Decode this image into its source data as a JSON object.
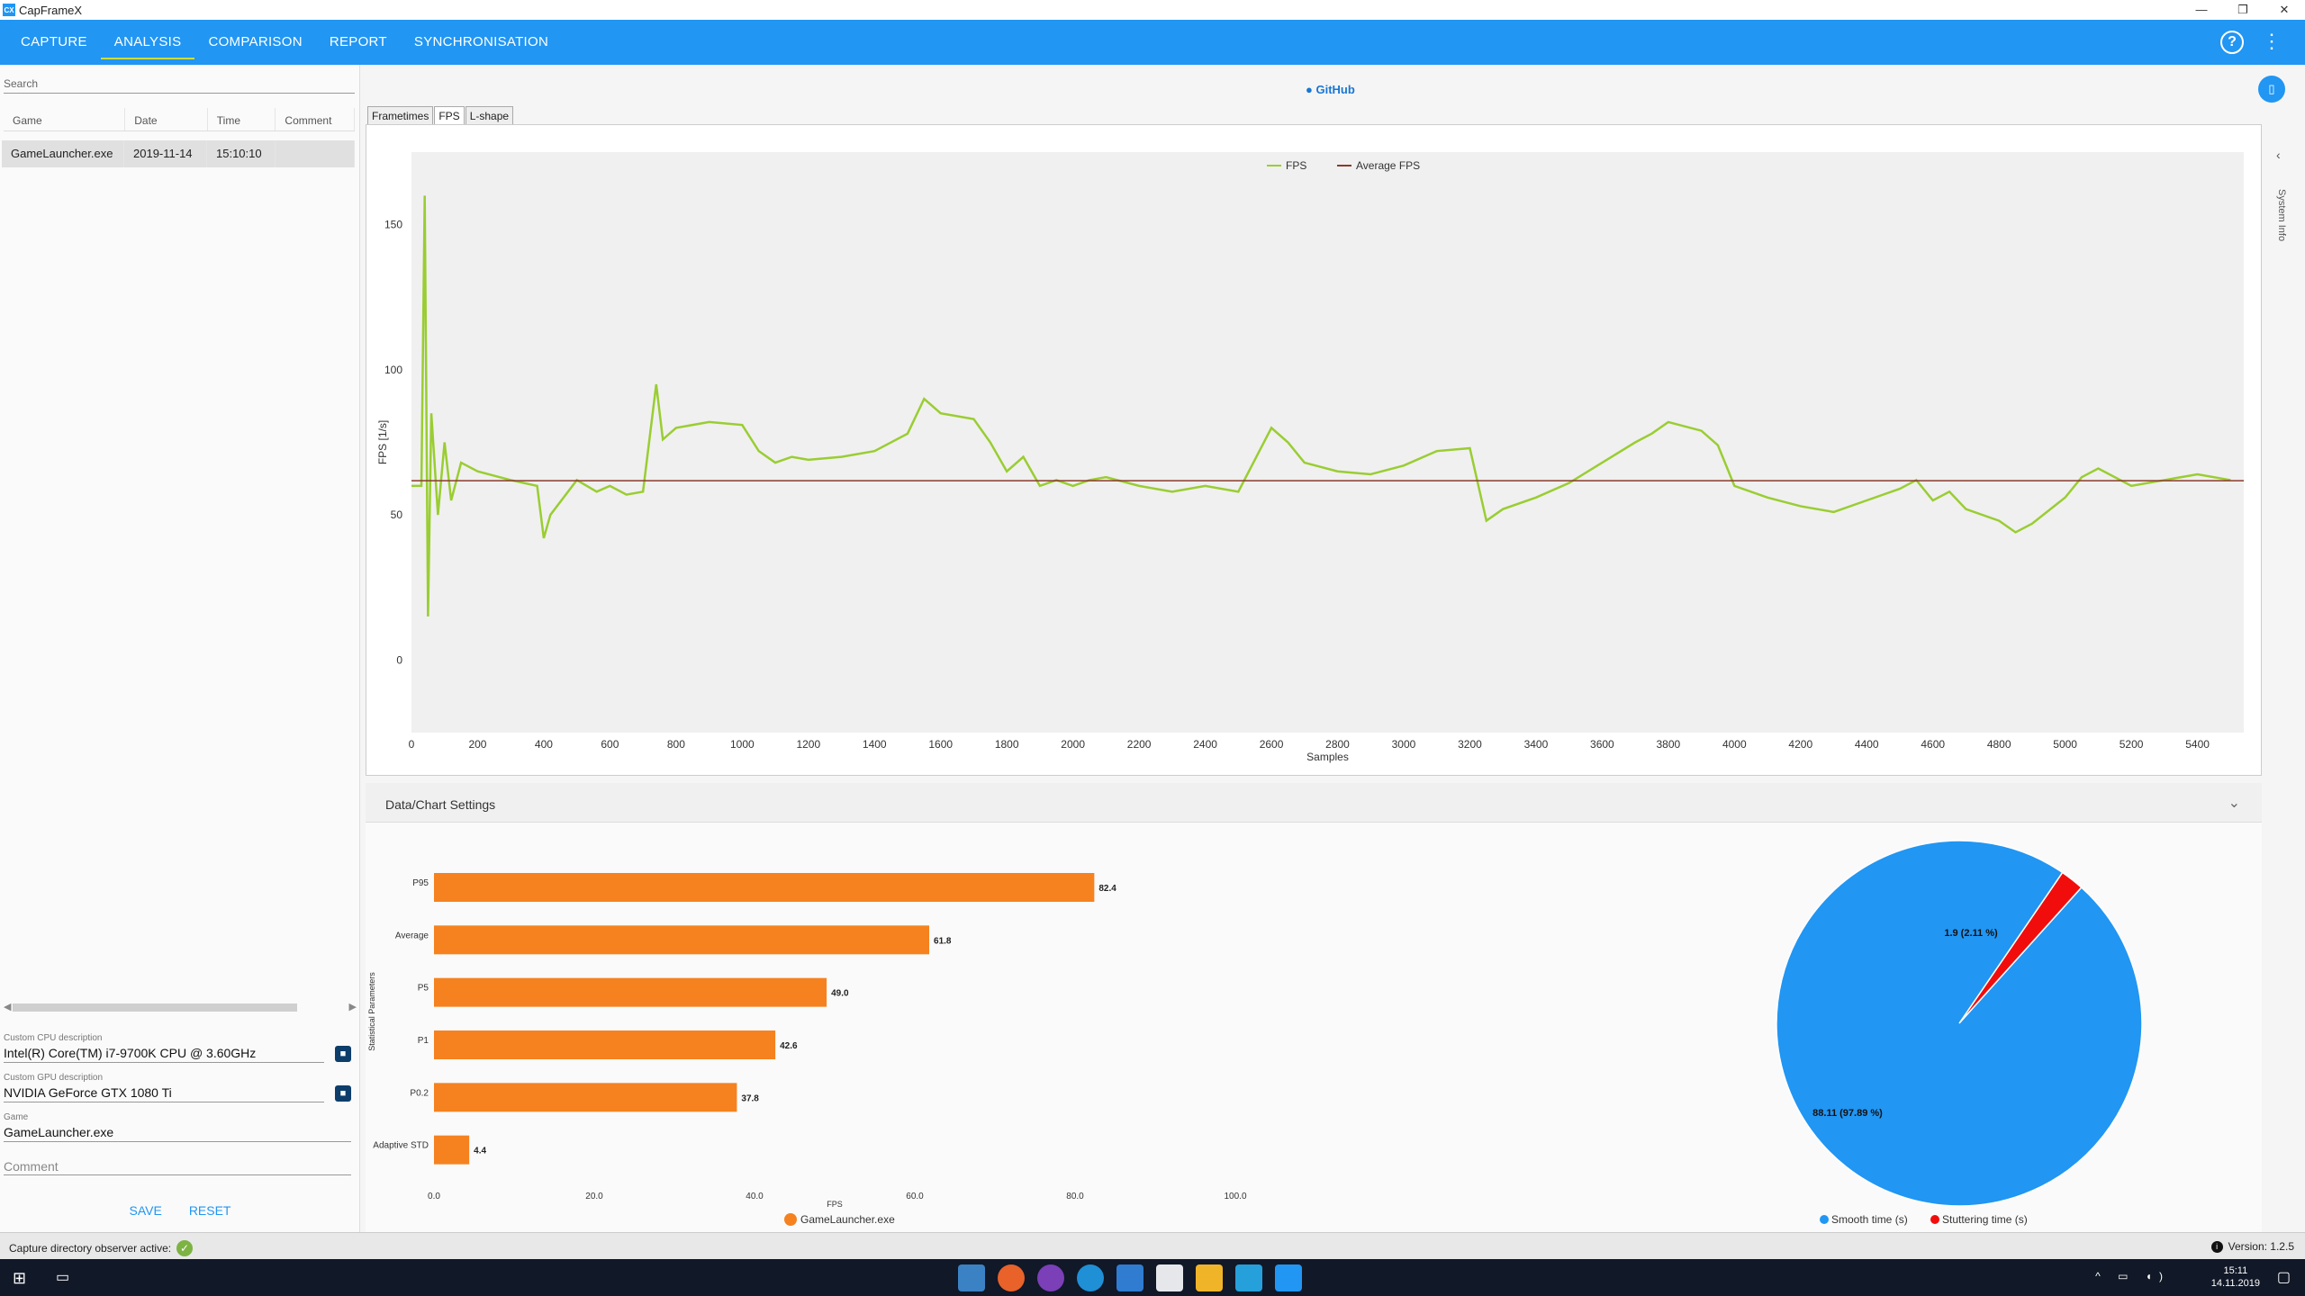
{
  "window": {
    "title": "CapFrameX",
    "app_icon_text": "CX",
    "min": "—",
    "restore": "❐",
    "close": "✕"
  },
  "nav": {
    "tabs": [
      "CAPTURE",
      "ANALYSIS",
      "COMPARISON",
      "REPORT",
      "SYNCHRONISATION"
    ],
    "active_tab": "ANALYSIS",
    "help_label": "?",
    "more_label": "⋮"
  },
  "left_panel": {
    "search_placeholder": "Search",
    "table": {
      "headers": [
        "Game",
        "Date",
        "Time",
        "Comment"
      ],
      "rows": [
        {
          "game": "GameLauncher.exe",
          "date": "2019-11-14",
          "time": "15:10:10",
          "comment": ""
        }
      ]
    },
    "fields": {
      "cpu_label": "Custom CPU description",
      "cpu_value": "Intel(R) Core(TM) i7-9700K CPU @ 3.60GHz",
      "gpu_label": "Custom GPU description",
      "gpu_value": "NVIDIA GeForce GTX 1080 Ti",
      "game_label": "Game",
      "game_value": "GameLauncher.exe",
      "comment_placeholder": "Comment"
    },
    "save_label": "SAVE",
    "reset_label": "RESET"
  },
  "content": {
    "github_label": "GitHub",
    "chart_tabs": [
      "Frametimes",
      "FPS",
      "L-shape"
    ],
    "active_chart_tab": "FPS",
    "sysinfo_label": "System Info",
    "settings_label": "Data/Chart Settings"
  },
  "chart_data": [
    {
      "type": "line",
      "xlabel": "Samples",
      "ylabel": "FPS [1/s]",
      "xlim": [
        0,
        5540
      ],
      "ylim": [
        -25,
        175
      ],
      "xticks": [
        0,
        200,
        400,
        600,
        800,
        1000,
        1200,
        1400,
        1600,
        1800,
        2000,
        2200,
        2400,
        2600,
        2800,
        3000,
        3200,
        3400,
        3600,
        3800,
        4000,
        4200,
        4400,
        4600,
        4800,
        5000,
        5200,
        5400
      ],
      "yticks": [
        0,
        50,
        100,
        150
      ],
      "legend": "top-center",
      "series": [
        {
          "name": "FPS",
          "color": "#9acd32",
          "x": [
            0,
            30,
            40,
            50,
            60,
            80,
            100,
            120,
            150,
            200,
            300,
            380,
            400,
            420,
            500,
            560,
            600,
            650,
            700,
            740,
            760,
            800,
            900,
            1000,
            1050,
            1100,
            1150,
            1200,
            1300,
            1400,
            1500,
            1550,
            1600,
            1700,
            1750,
            1800,
            1850,
            1900,
            1950,
            2000,
            2050,
            2100,
            2200,
            2300,
            2400,
            2500,
            2600,
            2650,
            2700,
            2800,
            2900,
            3000,
            3100,
            3200,
            3250,
            3300,
            3400,
            3500,
            3600,
            3700,
            3750,
            3800,
            3900,
            3950,
            4000,
            4100,
            4200,
            4300,
            4400,
            4500,
            4550,
            4600,
            4650,
            4700,
            4800,
            4850,
            4900,
            5000,
            5050,
            5100,
            5200,
            5300,
            5400,
            5500
          ],
          "y": [
            60,
            60,
            160,
            15,
            85,
            50,
            75,
            55,
            68,
            65,
            62,
            60,
            42,
            50,
            62,
            58,
            60,
            57,
            58,
            95,
            76,
            80,
            82,
            81,
            72,
            68,
            70,
            69,
            70,
            72,
            78,
            90,
            85,
            83,
            75,
            65,
            70,
            60,
            62,
            60,
            62,
            63,
            60,
            58,
            60,
            58,
            80,
            75,
            68,
            65,
            64,
            67,
            72,
            73,
            48,
            52,
            56,
            61,
            68,
            75,
            78,
            82,
            79,
            74,
            60,
            56,
            53,
            51,
            55,
            59,
            62,
            55,
            58,
            52,
            48,
            44,
            47,
            56,
            63,
            66,
            60,
            62,
            64,
            62
          ]
        },
        {
          "name": "Average FPS",
          "color": "#8b3a2b",
          "x": [
            0,
            5540
          ],
          "y": [
            61.8,
            61.8
          ]
        }
      ]
    },
    {
      "type": "bar",
      "orientation": "horizontal",
      "categories": [
        "P95",
        "Average",
        "P5",
        "P1",
        "P0.2",
        "Adaptive STD"
      ],
      "values": [
        82.4,
        61.8,
        49.0,
        42.6,
        37.8,
        4.4
      ],
      "value_labels": [
        "82.4",
        "61.8",
        "49.0",
        "42.6",
        "37.8",
        "4.4"
      ],
      "xlabel": "FPS",
      "ylabel": "Statistical Parameters",
      "xlim": [
        0,
        100
      ],
      "xticks": [
        "0.0",
        "20.0",
        "40.0",
        "60.0",
        "80.0",
        "100.0"
      ],
      "series_name": "GameLauncher.exe",
      "color": "#f5821f",
      "legend": "bottom-center"
    },
    {
      "type": "pie",
      "slices": [
        {
          "name": "Smooth time (s)",
          "value": 88.11,
          "label": "88.11 (97.89 %)",
          "color": "#2196f3"
        },
        {
          "name": "Stuttering time (s)",
          "value": 1.9,
          "label": "1.9 (2.11 %)",
          "color": "#f20d0d"
        }
      ],
      "legend": "bottom-center"
    }
  ],
  "statusbar": {
    "left_text": "Capture directory observer active:",
    "ok_icon": "✓",
    "version_text": "Version: 1.2.5",
    "info_icon": "i"
  },
  "taskbar": {
    "time": "15:11",
    "date": "14.11.2019",
    "start_icon": "⊞",
    "taskview_icon": "▭",
    "tray_icons": "^ ▭ ◖)"
  }
}
